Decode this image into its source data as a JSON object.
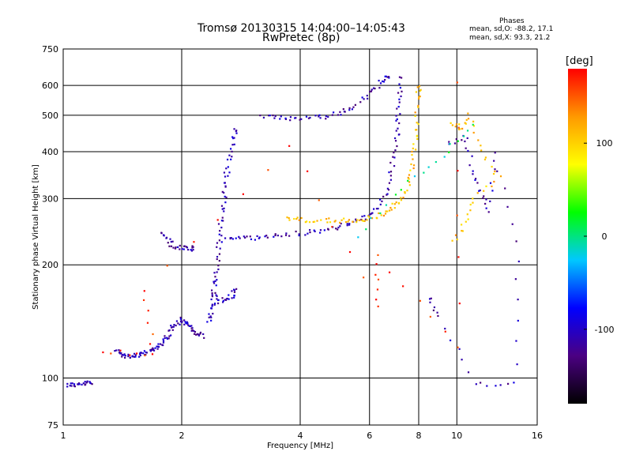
{
  "chart_data": {
    "type": "scatter",
    "title": "Tromsø 20130315 14:04:00–14:05:43",
    "subtitle": "RwPretec (8p)",
    "xlabel": "Frequency [MHz]",
    "ylabel": "Stationary phase Virtual Height [km]",
    "xscale": "log",
    "yscale": "log",
    "xlim": [
      1,
      16
    ],
    "ylim": [
      75,
      750
    ],
    "xticks": [
      "1",
      "2",
      "4",
      "6",
      "8",
      "10",
      "16"
    ],
    "yticks": [
      "75",
      "100",
      "200",
      "300",
      "400",
      "500",
      "600",
      "750"
    ],
    "grid": true,
    "stats": {
      "heading": "Phases",
      "o_line": "mean, sd,O: -88.2, 17.1",
      "x_line": "mean, sd,X:  93.3, 21.2"
    },
    "colorbar": {
      "unit": "[deg]",
      "range": [
        -180,
        180
      ],
      "ticks": [
        "100",
        "0",
        "-100"
      ],
      "colors": [
        "#000000",
        "#4b0082",
        "#0000ff",
        "#00c8ff",
        "#00ff00",
        "#ffff00",
        "#ff9900",
        "#ff0000"
      ]
    },
    "traces": [
      {
        "name": "",
        "phase": -110,
        "points": [
          [
            1.02,
            96
          ],
          [
            1.06,
            96
          ],
          [
            1.1,
            96
          ],
          [
            1.15,
            97
          ],
          [
            1.18,
            97
          ]
        ]
      },
      {
        "name": "",
        "phase": -110,
        "points": [
          [
            1.35,
            118
          ],
          [
            1.4,
            117
          ],
          [
            1.45,
            114
          ],
          [
            1.5,
            115
          ],
          [
            1.55,
            114
          ],
          [
            1.6,
            116
          ],
          [
            1.65,
            118
          ],
          [
            1.7,
            119
          ],
          [
            1.75,
            122
          ],
          [
            1.8,
            126
          ],
          [
            1.85,
            130
          ],
          [
            1.9,
            137
          ],
          [
            1.95,
            140
          ],
          [
            2.0,
            143
          ],
          [
            2.05,
            140
          ],
          [
            2.1,
            137
          ],
          [
            2.15,
            133
          ],
          [
            2.2,
            131
          ],
          [
            2.25,
            129
          ]
        ]
      },
      {
        "name": "",
        "phase": -110,
        "points": [
          [
            2.35,
            140
          ],
          [
            2.38,
            150
          ],
          [
            2.4,
            160
          ],
          [
            2.42,
            175
          ],
          [
            2.45,
            190
          ],
          [
            2.47,
            210
          ],
          [
            2.5,
            235
          ],
          [
            2.52,
            260
          ],
          [
            2.55,
            290
          ],
          [
            2.57,
            320
          ],
          [
            2.6,
            350
          ],
          [
            2.65,
            390
          ],
          [
            2.7,
            430
          ],
          [
            2.75,
            460
          ]
        ]
      },
      {
        "name": "",
        "phase": -110,
        "points": [
          [
            2.4,
            165
          ],
          [
            2.5,
            160
          ],
          [
            2.6,
            162
          ],
          [
            2.7,
            166
          ],
          [
            2.75,
            172
          ]
        ]
      },
      {
        "name": "",
        "phase": -110,
        "points": [
          [
            1.78,
            245
          ],
          [
            1.85,
            232
          ],
          [
            1.9,
            224
          ],
          [
            2.0,
            222
          ],
          [
            2.1,
            220
          ],
          [
            2.15,
            222
          ]
        ]
      },
      {
        "name": "",
        "phase": -110,
        "points": [
          [
            2.6,
            235
          ],
          [
            2.8,
            236
          ],
          [
            3.0,
            236
          ],
          [
            3.3,
            238
          ],
          [
            3.6,
            240
          ],
          [
            4.0,
            243
          ],
          [
            4.4,
            246
          ],
          [
            4.8,
            250
          ],
          [
            5.2,
            255
          ],
          [
            5.6,
            262
          ],
          [
            6.0,
            272
          ],
          [
            6.3,
            285
          ],
          [
            6.6,
            310
          ],
          [
            6.8,
            350
          ],
          [
            6.95,
            400
          ],
          [
            7.05,
            450
          ],
          [
            7.1,
            500
          ],
          [
            7.15,
            560
          ],
          [
            7.2,
            640
          ]
        ]
      },
      {
        "name": "",
        "phase": -110,
        "points": [
          [
            3.2,
            500
          ],
          [
            3.5,
            492
          ],
          [
            3.8,
            488
          ],
          [
            4.2,
            490
          ],
          [
            4.6,
            496
          ],
          [
            5.0,
            505
          ],
          [
            5.4,
            520
          ],
          [
            5.8,
            550
          ],
          [
            6.2,
            590
          ],
          [
            6.5,
            620
          ],
          [
            6.7,
            640
          ]
        ]
      },
      {
        "name": "",
        "phase": 110,
        "points": [
          [
            3.7,
            265
          ],
          [
            4.0,
            264
          ],
          [
            4.4,
            263
          ],
          [
            4.8,
            262
          ],
          [
            5.2,
            262
          ],
          [
            5.6,
            263
          ],
          [
            6.0,
            266
          ],
          [
            6.4,
            272
          ],
          [
            6.8,
            282
          ],
          [
            7.1,
            292
          ],
          [
            7.4,
            310
          ],
          [
            7.6,
            340
          ],
          [
            7.75,
            380
          ],
          [
            7.85,
            430
          ],
          [
            7.9,
            480
          ],
          [
            7.95,
            560
          ],
          [
            8.0,
            600
          ]
        ]
      },
      {
        "name": "",
        "phase": -110,
        "points": [
          [
            9.5,
            420
          ],
          [
            10.5,
            440
          ],
          [
            11.0,
            360
          ],
          [
            11.5,
            310
          ],
          [
            12.0,
            280
          ],
          [
            12.5,
            400
          ],
          [
            14.3,
            206
          ],
          [
            14.0,
            96
          ],
          [
            11.2,
            97
          ],
          [
            9.0,
            145
          ],
          [
            8.5,
            165
          ]
        ]
      },
      {
        "name": "",
        "phase": 110,
        "points": [
          [
            9.7,
            480
          ],
          [
            10.2,
            460
          ],
          [
            10.8,
            500
          ],
          [
            11.5,
            400
          ],
          [
            12.8,
            340
          ],
          [
            11.0,
            300
          ],
          [
            10.5,
            260
          ],
          [
            9.8,
            230
          ]
        ]
      },
      {
        "name": "",
        "phase": 0,
        "points": [
          [
            5.6,
            240
          ],
          [
            7.3,
            320
          ],
          [
            9.2,
            390
          ],
          [
            10.9,
            470
          ]
        ]
      },
      {
        "name": "",
        "phase": 170,
        "points": [
          [
            10.0,
            615
          ],
          [
            10.1,
            120
          ],
          [
            6.3,
            210
          ],
          [
            6.25,
            155
          ],
          [
            3.8,
            420
          ],
          [
            1.6,
            170
          ],
          [
            1.7,
            115
          ],
          [
            1.26,
            118
          ]
        ]
      }
    ]
  }
}
